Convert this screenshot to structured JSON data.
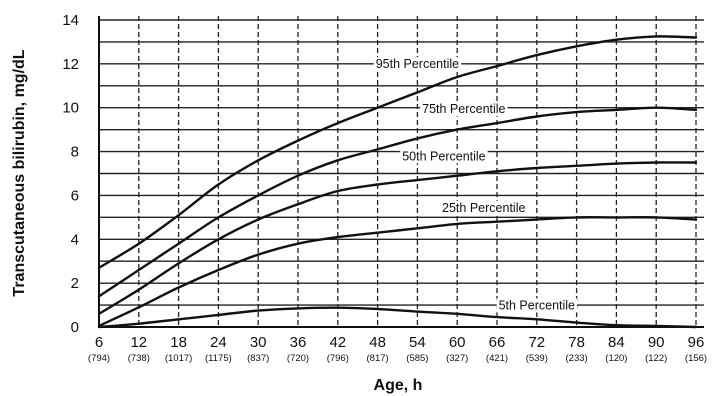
{
  "chart_data": {
    "type": "line",
    "title": "",
    "xlabel": "Age, h",
    "ylabel": "Transcutaneous bilirubin, mg/dL",
    "xlim": [
      6,
      96
    ],
    "ylim": [
      0,
      14
    ],
    "grid": true,
    "x": [
      6,
      12,
      18,
      24,
      30,
      36,
      42,
      48,
      54,
      60,
      66,
      72,
      78,
      84,
      90,
      96
    ],
    "x_tick_labels": [
      "6",
      "12",
      "18",
      "24",
      "30",
      "36",
      "42",
      "48",
      "54",
      "60",
      "66",
      "72",
      "78",
      "84",
      "90",
      "96"
    ],
    "x_counts": [
      "(794)",
      "(738)",
      "(1017)",
      "(1175)",
      "(837)",
      "(720)",
      "(796)",
      "(817)",
      "(585)",
      "(327)",
      "(421)",
      "(539)",
      "(233)",
      "(120)",
      "(122)",
      "(156)"
    ],
    "y_ticks": [
      0,
      2,
      4,
      6,
      8,
      10,
      12,
      14
    ],
    "y_tick_labels": [
      "0",
      "2",
      "4",
      "6",
      "8",
      "10",
      "12",
      "14"
    ],
    "series": [
      {
        "name": "95th Percentile",
        "values": [
          2.7,
          3.8,
          5.1,
          6.5,
          7.6,
          8.5,
          9.3,
          10.0,
          10.7,
          11.4,
          11.9,
          12.4,
          12.8,
          13.1,
          13.25,
          13.2
        ],
        "label_x": 54,
        "label_y": 11.8
      },
      {
        "name": "75th Percentile",
        "values": [
          1.4,
          2.6,
          3.8,
          5.0,
          6.0,
          6.9,
          7.6,
          8.1,
          8.6,
          9.0,
          9.3,
          9.6,
          9.8,
          9.9,
          10.0,
          9.9
        ],
        "label_x": 61,
        "label_y": 9.75
      },
      {
        "name": "50th Percentile",
        "values": [
          0.6,
          1.7,
          2.9,
          4.0,
          4.9,
          5.6,
          6.2,
          6.5,
          6.7,
          6.9,
          7.1,
          7.25,
          7.35,
          7.45,
          7.5,
          7.5
        ],
        "label_x": 58,
        "label_y": 7.6
      },
      {
        "name": "25th Percentile",
        "values": [
          0.05,
          0.9,
          1.8,
          2.6,
          3.3,
          3.8,
          4.1,
          4.3,
          4.5,
          4.7,
          4.8,
          4.9,
          5.0,
          5.0,
          5.0,
          4.9
        ],
        "label_x": 64,
        "label_y": 5.25
      },
      {
        "name": "5th Percentile",
        "values": [
          0.0,
          0.15,
          0.35,
          0.55,
          0.75,
          0.85,
          0.88,
          0.82,
          0.7,
          0.6,
          0.45,
          0.35,
          0.2,
          0.08,
          0.05,
          0.0
        ],
        "label_x": 72,
        "label_y": 0.8
      }
    ]
  }
}
